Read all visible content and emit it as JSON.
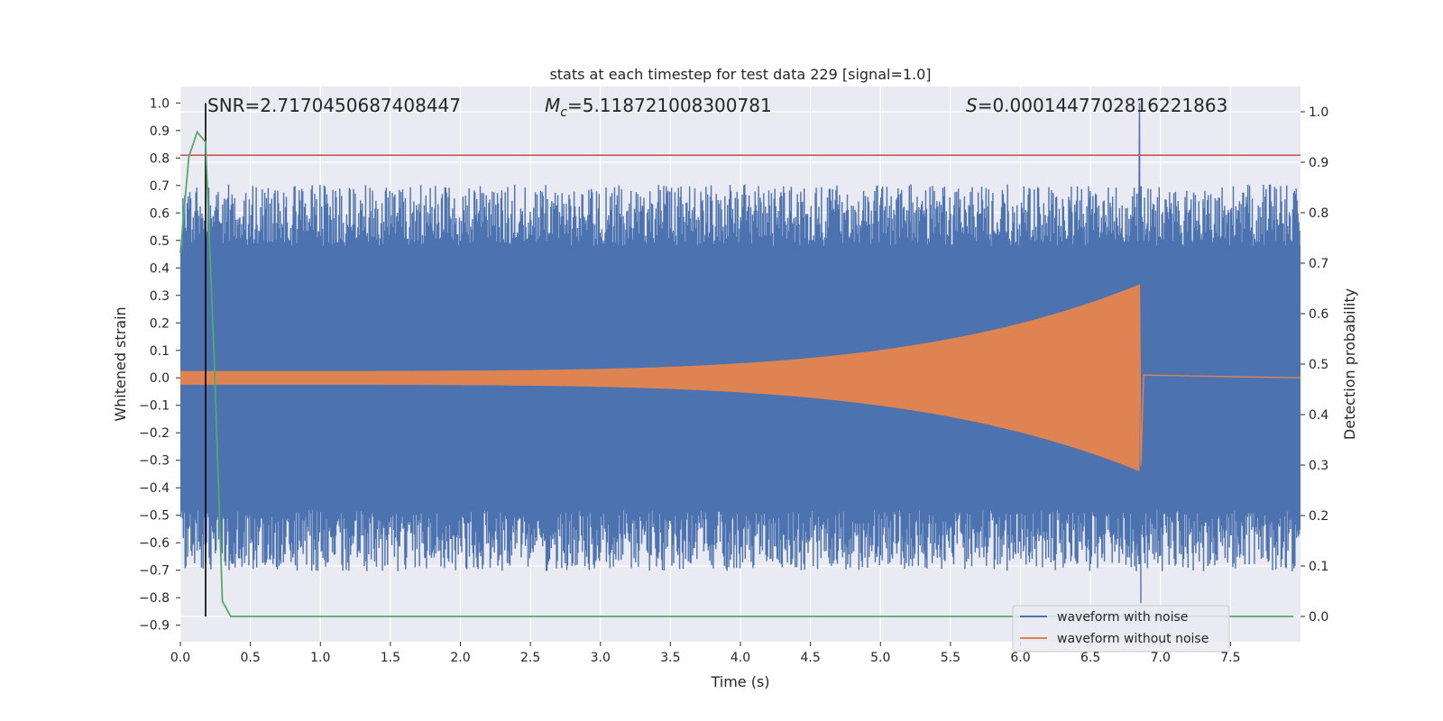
{
  "chart_data": {
    "type": "line",
    "title": "stats at each timestep for test data 229 [signal=1.0]",
    "xlabel": "Time (s)",
    "ylabel": "Whitened strain",
    "ylabel_right": "Detection probability",
    "xlim": [
      0.0,
      8.0
    ],
    "ylim": [
      -0.96,
      1.06
    ],
    "ylim_right": [
      -0.05,
      1.05
    ],
    "x_ticks": [
      "0.0",
      "0.5",
      "1.0",
      "1.5",
      "2.0",
      "2.5",
      "3.0",
      "3.5",
      "4.0",
      "4.5",
      "5.0",
      "5.5",
      "6.0",
      "6.5",
      "7.0",
      "7.5"
    ],
    "y_ticks": [
      "−0.9",
      "−0.8",
      "−0.7",
      "−0.6",
      "−0.5",
      "−0.4",
      "−0.3",
      "−0.2",
      "−0.1",
      "0.0",
      "0.1",
      "0.2",
      "0.3",
      "0.4",
      "0.5",
      "0.6",
      "0.7",
      "0.8",
      "0.9",
      "1.0"
    ],
    "y_right_ticks": [
      "0.0",
      "0.1",
      "0.2",
      "0.3",
      "0.4",
      "0.5",
      "0.6",
      "0.7",
      "0.8",
      "0.9",
      "1.0"
    ],
    "grid": true,
    "annotations": {
      "snr": "SNR=2.7170450687408447",
      "mc_symbol": "M",
      "mc_sub": "c",
      "mc_value": "=5.118721008300781",
      "s_symbol": "S",
      "s_value": "=0.0001447702816221863"
    },
    "threshold_y": 0.81,
    "marker_x": 0.18,
    "series": [
      {
        "name": "waveform with noise",
        "color": "#4c72b0",
        "description": "noisy whitened strain, mostly within ±0.7, spike to 1.0 near t=6.85",
        "envelope_typical": 0.64,
        "peak_time": 6.85,
        "peak_value": 1.0
      },
      {
        "name": "waveform without noise",
        "color": "#dd8452",
        "description": "chirp signal, amplitude grows until merger at t≈6.85 then rings down to 0",
        "amplitude_start": 0.025,
        "amplitude_merger": 0.34,
        "merger_time": 6.85
      },
      {
        "name": "Detection probability",
        "axis": "right",
        "color": "#55a868",
        "x": [
          0.0,
          0.06,
          0.12,
          0.18,
          0.24,
          0.3,
          0.36,
          0.42,
          7.95
        ],
        "y": [
          0.72,
          0.91,
          0.96,
          0.94,
          0.52,
          0.03,
          0.0,
          0.0,
          0.0
        ]
      }
    ],
    "legend": {
      "placement": "lower-right",
      "entries": [
        "waveform with noise",
        "waveform without noise"
      ]
    }
  }
}
